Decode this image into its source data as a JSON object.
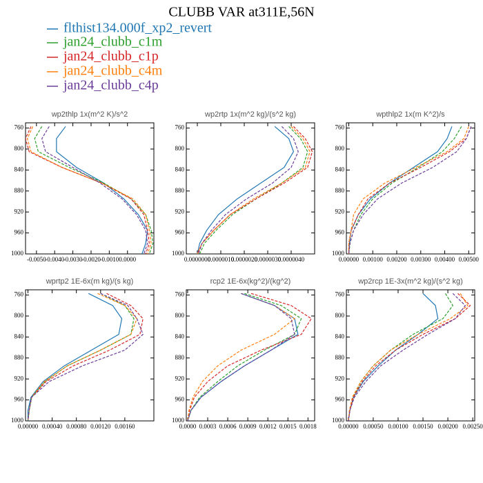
{
  "title": "CLUBB VAR at311E,56N",
  "legend": [
    {
      "name": "flthist134.000f_xp2_revert",
      "color": "#1f77b4",
      "style": "solid"
    },
    {
      "name": "jan24_clubb_c1m",
      "color": "#2ca02c",
      "style": "dashed"
    },
    {
      "name": "jan24_clubb_c1p",
      "color": "#d62728",
      "style": "dashed"
    },
    {
      "name": "jan24_clubb_c4m",
      "color": "#ff7f0e",
      "style": "dashed"
    },
    {
      "name": "jan24_clubb_c4p",
      "color": "#6a3d9a",
      "style": "dashed"
    }
  ],
  "chart_data": [
    {
      "type": "line",
      "title": "wp2thlp  1x(m^2 K)/s^2",
      "levels": [
        757,
        780,
        805,
        835,
        865,
        895,
        925,
        955,
        980,
        1000
      ],
      "xlim": [
        -0.0056,
        0.00145
      ],
      "xticks": [
        {
          "value": -0.005,
          "label": "-0.0050"
        },
        {
          "value": -0.004,
          "label": "-0.0040"
        },
        {
          "value": -0.003,
          "label": "-0.0030"
        },
        {
          "value": -0.002,
          "label": "-0.0020"
        },
        {
          "value": -0.001,
          "label": "-0.0010"
        },
        {
          "value": 0,
          "label": "0.0000"
        }
      ],
      "ylim": [
        1000,
        750
      ],
      "yticks": [
        760,
        800,
        840,
        880,
        920,
        960,
        1000
      ],
      "series": [
        {
          "values": [
            -0.0034,
            -0.0039,
            -0.0039,
            -0.0028,
            -0.0013,
            -0.0002,
            0.0006,
            0.0011,
            0.001,
            0.0008
          ]
        },
        {
          "values": [
            -0.0047,
            -0.0051,
            -0.0049,
            -0.0032,
            -0.0013,
            0.0002,
            0.001,
            0.0013,
            0.0014,
            0.0012
          ]
        },
        {
          "values": [
            -0.0053,
            -0.0056,
            -0.0054,
            -0.0036,
            -0.0014,
            0.0002,
            0.0009,
            0.0011,
            0.0012,
            0.001
          ]
        },
        {
          "values": [
            -0.0052,
            -0.0055,
            -0.0053,
            -0.0036,
            -0.0014,
            0.0003,
            0.001,
            0.0012,
            0.0013,
            0.0011
          ]
        },
        {
          "values": [
            -0.0043,
            -0.0047,
            -0.0045,
            -0.003,
            -0.0015,
            -0.0003,
            0.0005,
            0.001,
            0.0011,
            0.0009
          ]
        }
      ]
    },
    {
      "type": "line",
      "title": "wp2rtp  1x(m^2 kg)/(s^2 kg)",
      "levels": [
        757,
        780,
        805,
        835,
        865,
        895,
        925,
        955,
        980,
        1000
      ],
      "xlim": [
        -4.7e-07,
        5e-06
      ],
      "xticks": [
        {
          "value": 0,
          "label": "0.0000000"
        },
        {
          "value": 1e-06,
          "label": "0.0000010"
        },
        {
          "value": 2e-06,
          "label": "0.0000020"
        },
        {
          "value": 3e-06,
          "label": "0.0000030"
        },
        {
          "value": 4e-06,
          "label": "0.0000040"
        }
      ],
      "ylim": [
        1000,
        750
      ],
      "yticks": [
        760,
        800,
        840,
        880,
        920,
        960,
        1000
      ],
      "series": [
        {
          "values": [
            3.3e-06,
            3.9e-06,
            4.1e-06,
            3.7e-06,
            2.7e-06,
            1.7e-06,
            9e-07,
            4e-07,
            1e-07,
            0
          ]
        },
        {
          "values": [
            3.9e-06,
            4.4e-06,
            4.7e-06,
            4.5e-06,
            3.6e-06,
            2.5e-06,
            1.5e-06,
            8e-07,
            3e-07,
            1e-07
          ]
        },
        {
          "values": [
            4.1e-06,
            4.6e-06,
            4.9e-06,
            4.7e-06,
            3.7e-06,
            2.5e-06,
            1.4e-06,
            7e-07,
            2e-07,
            0
          ]
        },
        {
          "values": [
            4e-06,
            4.5e-06,
            4.8e-06,
            4.6e-06,
            3.6e-06,
            2.4e-06,
            1.4e-06,
            7e-07,
            2e-07,
            0
          ]
        },
        {
          "values": [
            3.6e-06,
            4.1e-06,
            4.3e-06,
            4e-06,
            3.2e-06,
            2.1e-06,
            1.2e-06,
            6e-07,
            2e-07,
            5e-08
          ]
        }
      ]
    },
    {
      "type": "line",
      "title": "wpthlp2  1x(m K^2)/s",
      "levels": [
        757,
        780,
        805,
        835,
        865,
        895,
        925,
        955,
        980,
        1000
      ],
      "xlim": [
        -0.0001,
        0.00525
      ],
      "xticks": [
        {
          "value": 0,
          "label": "0.00000"
        },
        {
          "value": 0.001,
          "label": "0.00100"
        },
        {
          "value": 0.002,
          "label": "0.00200"
        },
        {
          "value": 0.003,
          "label": "0.00300"
        },
        {
          "value": 0.004,
          "label": "0.00400"
        },
        {
          "value": 0.005,
          "label": "0.00500"
        }
      ],
      "ylim": [
        1000,
        750
      ],
      "yticks": [
        760,
        800,
        840,
        880,
        920,
        960,
        1000
      ],
      "series": [
        {
          "values": [
            0.0043,
            0.0041,
            0.0037,
            0.0027,
            0.0017,
            0.0009,
            0.0004,
            0.0001,
            3e-05,
            0
          ]
        },
        {
          "values": [
            0.0047,
            0.0044,
            0.0039,
            0.0029,
            0.0018,
            0.001,
            0.0005,
            0.0002,
            5e-05,
            0
          ]
        },
        {
          "values": [
            0.0051,
            0.0049,
            0.0042,
            0.003,
            0.0017,
            0.0008,
            0.0004,
            0.0001,
            0,
            0
          ]
        },
        {
          "values": [
            0.005,
            0.0048,
            0.0041,
            0.0028,
            0.0015,
            0.0006,
            0.0002,
            0.0001,
            0,
            0
          ]
        },
        {
          "values": [
            0.0051,
            0.0049,
            0.0045,
            0.0035,
            0.0022,
            0.0012,
            0.0006,
            0.0002,
            5e-05,
            0
          ]
        }
      ]
    },
    {
      "type": "line",
      "title": "wprtp2  1E-6x(m kg)/(s kg)",
      "levels": [
        757,
        780,
        805,
        835,
        865,
        895,
        925,
        955,
        980,
        1000
      ],
      "xlim": [
        -4e-05,
        0.00208
      ],
      "xticks": [
        {
          "value": 0,
          "label": "0.00000"
        },
        {
          "value": 0.0004,
          "label": "0.00040"
        },
        {
          "value": 0.0008,
          "label": "0.00080"
        },
        {
          "value": 0.0012,
          "label": "0.00120"
        },
        {
          "value": 0.0016,
          "label": "0.00160"
        }
      ],
      "ylim": [
        1000,
        750
      ],
      "yticks": [
        760,
        800,
        840,
        880,
        920,
        960,
        1000
      ],
      "series": [
        {
          "values": [
            0.001,
            0.0014,
            0.00155,
            0.0015,
            0.00105,
            0.0006,
            0.00025,
            5e-05,
            0,
            0
          ]
        },
        {
          "values": [
            0.0012,
            0.0016,
            0.00175,
            0.0017,
            0.0012,
            0.00065,
            0.00028,
            6e-05,
            2e-05,
            0
          ]
        },
        {
          "values": [
            0.0013,
            0.0017,
            0.0019,
            0.00185,
            0.00135,
            0.00075,
            0.0003,
            6e-05,
            2e-05,
            0
          ]
        },
        {
          "values": [
            0.00115,
            0.0016,
            0.0018,
            0.0017,
            0.0012,
            0.00065,
            0.00027,
            6e-05,
            2e-05,
            0
          ]
        },
        {
          "values": [
            0.0012,
            0.00165,
            0.0018,
            0.0019,
            0.0016,
            0.0009,
            0.00035,
            6e-05,
            2e-05,
            0
          ]
        }
      ]
    },
    {
      "type": "line",
      "title": "rcp2  1E-6x(kg^2)/(kg^2)",
      "levels": [
        757,
        780,
        805,
        835,
        865,
        895,
        925,
        955,
        980,
        1000
      ],
      "xlim": [
        -2e-05,
        0.0019
      ],
      "xticks": [
        {
          "value": 0,
          "label": "0.0000"
        },
        {
          "value": 0.0003,
          "label": "0.0003"
        },
        {
          "value": 0.0006,
          "label": "0.0006"
        },
        {
          "value": 0.0009,
          "label": "0.0009"
        },
        {
          "value": 0.0012,
          "label": "0.0012"
        },
        {
          "value": 0.0015,
          "label": "0.0015"
        },
        {
          "value": 0.0018,
          "label": "0.0018"
        }
      ],
      "ylim": [
        1000,
        750
      ],
      "yticks": [
        760,
        800,
        840,
        880,
        920,
        960,
        1000
      ],
      "series": [
        {
          "values": [
            0.0008,
            0.0013,
            0.0016,
            0.00165,
            0.00125,
            0.00085,
            0.0005,
            0.0002,
            5e-05,
            0
          ]
        },
        {
          "values": [
            0.00085,
            0.0014,
            0.0017,
            0.0016,
            0.00115,
            0.00075,
            0.00045,
            0.00018,
            5e-05,
            0
          ]
        },
        {
          "values": [
            0.00095,
            0.00155,
            0.00185,
            0.0017,
            0.0011,
            0.0006,
            0.0003,
            0.0001,
            3e-05,
            0
          ]
        },
        {
          "values": [
            0.0008,
            0.0013,
            0.0016,
            0.0013,
            0.0008,
            0.00045,
            0.00022,
            8e-05,
            2e-05,
            0
          ]
        },
        {
          "values": [
            0.0008,
            0.0013,
            0.00155,
            0.0016,
            0.00125,
            0.00085,
            0.0005,
            0.0002,
            5e-05,
            0
          ]
        }
      ]
    },
    {
      "type": "line",
      "title": "wp2rcp  1E-3x(m^2 kg)/(s^2 kg)",
      "levels": [
        757,
        780,
        805,
        835,
        865,
        895,
        925,
        955,
        980,
        1000
      ],
      "xlim": [
        -4e-05,
        0.00254
      ],
      "xticks": [
        {
          "value": 0,
          "label": "0.00000"
        },
        {
          "value": 0.0005,
          "label": "0.00050"
        },
        {
          "value": 0.001,
          "label": "0.00100"
        },
        {
          "value": 0.0015,
          "label": "0.00150"
        },
        {
          "value": 0.002,
          "label": "0.00200"
        },
        {
          "value": 0.0025,
          "label": "0.00250"
        }
      ],
      "ylim": [
        1000,
        750
      ],
      "yticks": [
        760,
        800,
        840,
        880,
        920,
        960,
        1000
      ],
      "series": [
        {
          "values": [
            0.0015,
            0.00175,
            0.0018,
            0.0014,
            0.00095,
            0.0006,
            0.0003,
            0.0001,
            3e-05,
            0
          ]
        },
        {
          "values": [
            0.00195,
            0.0021,
            0.0019,
            0.0013,
            0.00085,
            0.0005,
            0.00025,
            0.0001,
            3e-05,
            0
          ]
        },
        {
          "values": [
            0.0022,
            0.00245,
            0.00215,
            0.0015,
            0.00095,
            0.00055,
            0.00028,
            0.0001,
            3e-05,
            0
          ]
        },
        {
          "values": [
            0.00225,
            0.0024,
            0.00205,
            0.0014,
            0.00085,
            0.0005,
            0.00025,
            8e-05,
            2e-05,
            0
          ]
        },
        {
          "values": [
            0.0021,
            0.00235,
            0.00215,
            0.0016,
            0.0011,
            0.00065,
            0.00035,
            0.00012,
            3e-05,
            0
          ]
        }
      ]
    }
  ]
}
